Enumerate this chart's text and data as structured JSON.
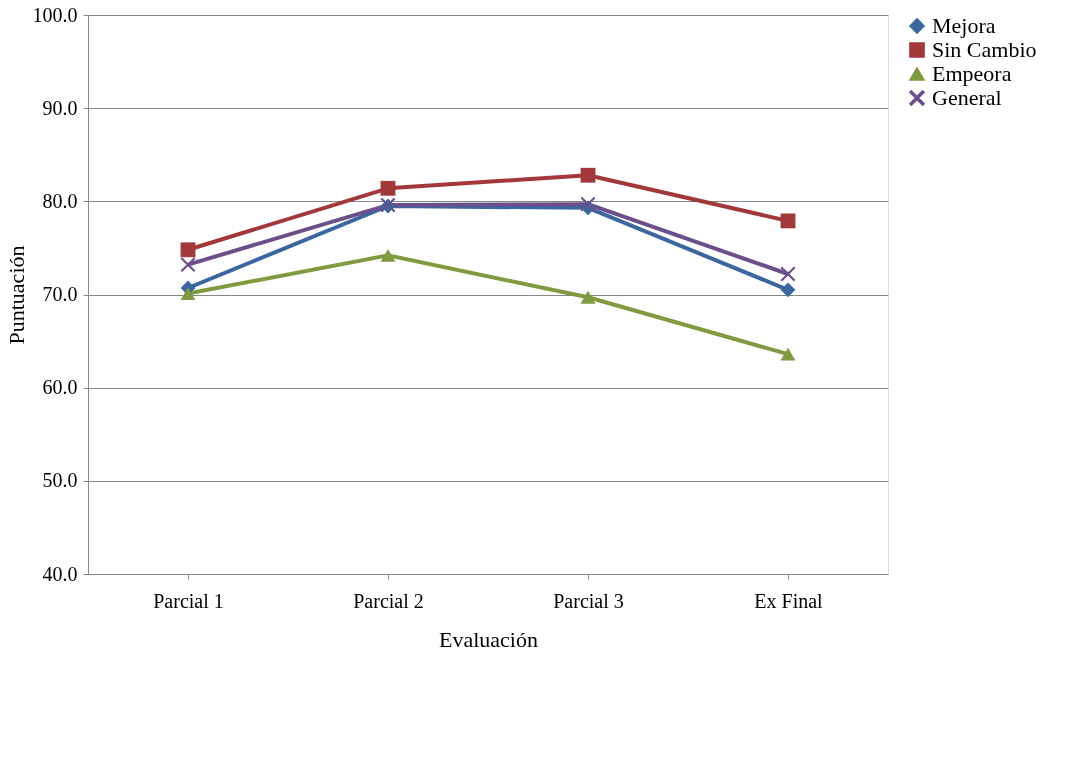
{
  "chart_data": {
    "type": "line",
    "xlabel": "Evaluación",
    "ylabel": "Puntuación",
    "categories": [
      "Parcial 1",
      "Parcial 2",
      "Parcial 3",
      "Ex Final"
    ],
    "ylim": [
      40,
      100
    ],
    "yticks": [
      {
        "value": 40,
        "label": "40.0"
      },
      {
        "value": 50,
        "label": "50.0"
      },
      {
        "value": 60,
        "label": "60.0"
      },
      {
        "value": 70,
        "label": "70.0"
      },
      {
        "value": 80,
        "label": "80.0"
      },
      {
        "value": 90,
        "label": "90.0"
      },
      {
        "value": 100,
        "label": "100.0"
      }
    ],
    "grid": "y",
    "legend": "right",
    "line_style": "solid",
    "series": [
      {
        "name": "Mejora",
        "color": "#3a67a0",
        "marker": "diamond",
        "values": [
          70.7,
          79.5,
          79.3,
          70.5
        ]
      },
      {
        "name": "Sin Cambio",
        "color": "#a3383a",
        "marker": "square",
        "values": [
          74.8,
          81.4,
          82.8,
          77.9
        ]
      },
      {
        "name": "Empeora",
        "color": "#7f9a3f",
        "marker": "triangle",
        "values": [
          70.1,
          74.2,
          69.7,
          63.6
        ]
      },
      {
        "name": "General",
        "color": "#6a4f8a",
        "marker": "cross",
        "values": [
          73.2,
          79.6,
          79.7,
          72.2
        ]
      }
    ]
  }
}
